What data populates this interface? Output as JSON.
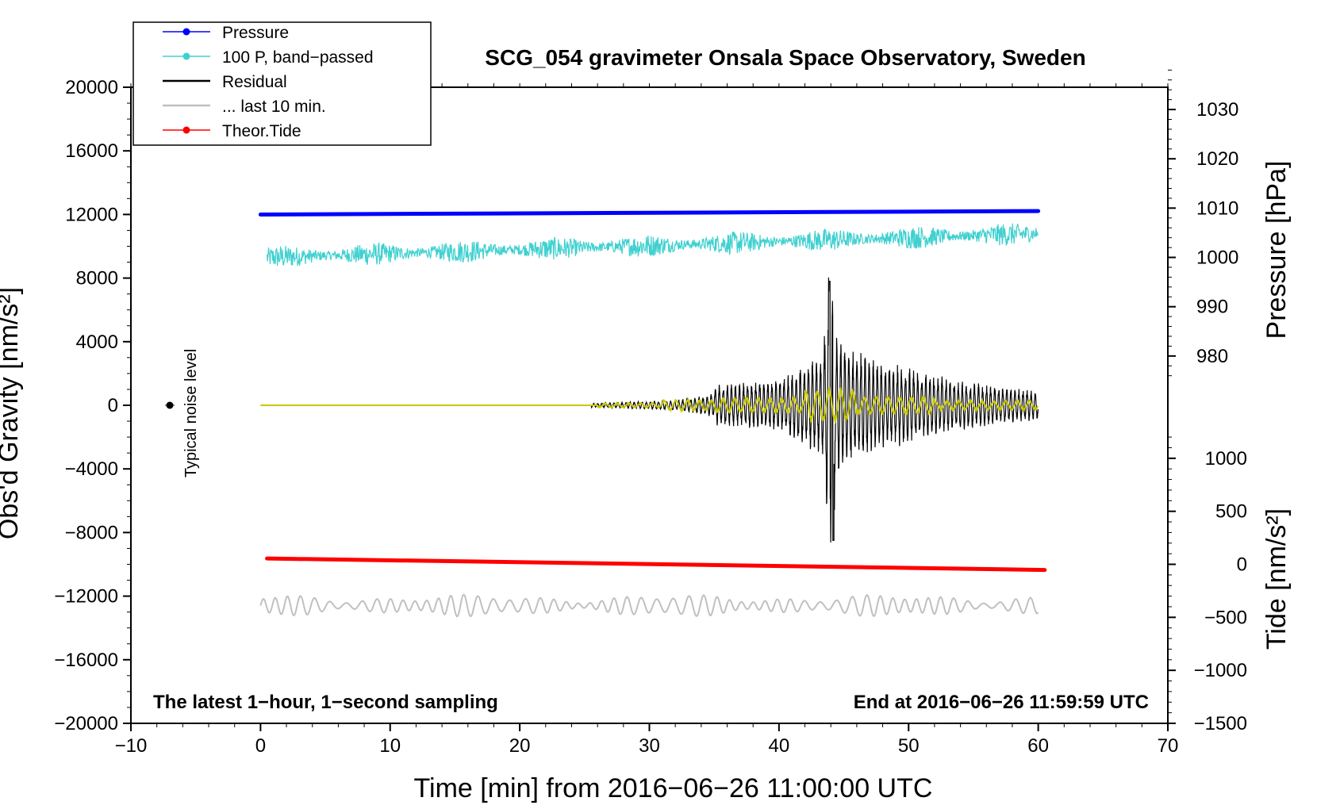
{
  "chart_data": {
    "type": "line",
    "title": "SCG_054 gravimeter Onsala Space Observatory, Sweden",
    "xlabel": "Time [min] from 2016−06−26 11:00:00 UTC",
    "ylabel": "Obs'd Gravity [nm/s²]",
    "ylabel_right_top": "Pressure [hPa]",
    "ylabel_right_bottom": "Tide [nm/s²]",
    "xlim": [
      -10,
      70
    ],
    "ylim": [
      -20000,
      20000
    ],
    "xticks": [
      -10,
      0,
      10,
      20,
      30,
      40,
      50,
      60,
      70
    ],
    "xtick_labels": [
      "−10",
      "0",
      "10",
      "20",
      "30",
      "40",
      "50",
      "60",
      "70"
    ],
    "yticks": [
      -20000,
      -16000,
      -12000,
      -8000,
      -4000,
      0,
      4000,
      8000,
      12000,
      16000,
      20000
    ],
    "ytick_labels": [
      "−20000",
      "−16000",
      "−12000",
      "−8000",
      "−4000",
      "0",
      "4000",
      "8000",
      "12000",
      "16000",
      "20000"
    ],
    "pressure_axis": {
      "ticks": [
        980,
        990,
        1000,
        1010,
        1020,
        1030
      ],
      "tick_labels": [
        "980",
        "990",
        "1000",
        "1010",
        "1020",
        "1030"
      ],
      "gravity_at_1000": 9300,
      "gravity_per_hpa": 310
    },
    "tide_axis": {
      "ticks": [
        -1500,
        -1000,
        -500,
        0,
        500,
        1000
      ],
      "tick_labels": [
        "−1500",
        "−1000",
        "−500",
        "0",
        "500",
        "1000"
      ],
      "gravity_at_0": -10000,
      "gravity_per_unit": 6.667
    },
    "legend": {
      "position": "top-left",
      "entries": [
        {
          "label": "Pressure",
          "color": "#0000ff",
          "marker": true
        },
        {
          "label": "100 P, band−passed",
          "color": "#40d0d0",
          "marker": true
        },
        {
          "label": "Residual",
          "color": "#000000",
          "marker": false
        },
        {
          "label": "... last 10 min.",
          "color": "#c0c0c0",
          "marker": false
        },
        {
          "label": "Theor.Tide",
          "color": "#ff0000",
          "marker": true
        }
      ]
    },
    "series": [
      {
        "name": "Pressure",
        "color": "#0000ff",
        "y_axis": "pressure_hPa",
        "x": [
          0,
          60
        ],
        "values": [
          1008.7,
          1009.4
        ]
      },
      {
        "name": "100 P, band−passed",
        "color": "#40d0d0",
        "y_axis": "gravity",
        "x_range": [
          0.5,
          60
        ],
        "baseline_start": 9300,
        "baseline_end": 10800,
        "amplitude": 900
      },
      {
        "name": "Residual",
        "color": "#000000",
        "y_axis": "gravity",
        "x_range": [
          25.5,
          60
        ],
        "peak_x": 44,
        "peak_max": 7800,
        "peak_min": -8500
      },
      {
        "name": "Residual (filtered)",
        "color": "#c8c800",
        "y_axis": "gravity",
        "x_range": [
          0,
          60
        ],
        "amplitude": 800
      },
      {
        "name": "... last 10 min.",
        "color": "#c0c0c0",
        "y_axis": "gravity",
        "x_range": [
          0,
          60
        ],
        "baseline": -12600,
        "amplitude": 700
      },
      {
        "name": "Theor.Tide",
        "color": "#ff0000",
        "y_axis": "tide",
        "x": [
          0.5,
          60.5
        ],
        "values": [
          55,
          -53
        ]
      }
    ],
    "noise_marker": {
      "x": -7,
      "y": 0,
      "label": "Typical noise level"
    },
    "annotations": [
      {
        "text": "The latest 1−hour, 1−second sampling",
        "position": "bottom-left"
      },
      {
        "text": "End at 2016−06−26 11:59:59 UTC",
        "position": "bottom-right"
      }
    ]
  }
}
